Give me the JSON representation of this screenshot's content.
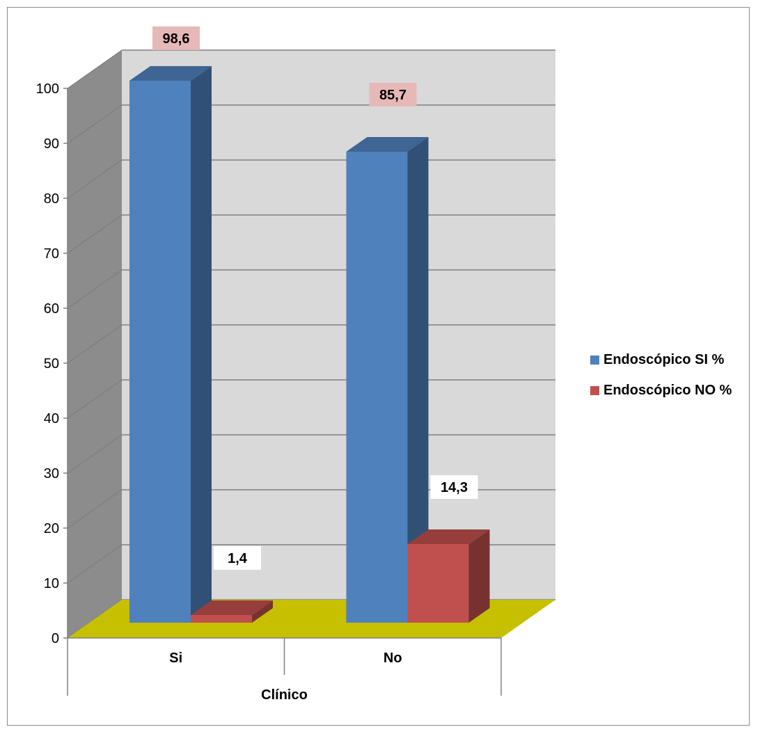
{
  "chart_data": {
    "type": "bar",
    "categories": [
      "Si",
      "No"
    ],
    "group_label": "Clínico",
    "series": [
      {
        "name": "Endoscópico SI %",
        "color": "#4F81BD",
        "values": [
          98.6,
          85.7
        ],
        "labels": [
          "98,6",
          "85,7"
        ]
      },
      {
        "name": "Endoscópico NO %",
        "color": "#C0504D",
        "values": [
          1.4,
          14.3
        ],
        "labels": [
          "1,4",
          "14,3"
        ]
      }
    ],
    "yticks": [
      "0",
      "10",
      "20",
      "30",
      "40",
      "50",
      "60",
      "70",
      "80",
      "90",
      "100"
    ],
    "ylim": [
      0,
      100
    ],
    "grid": true,
    "legend": "right",
    "floor_color": "#C6C000",
    "wall_color": "#D9D9D9"
  }
}
